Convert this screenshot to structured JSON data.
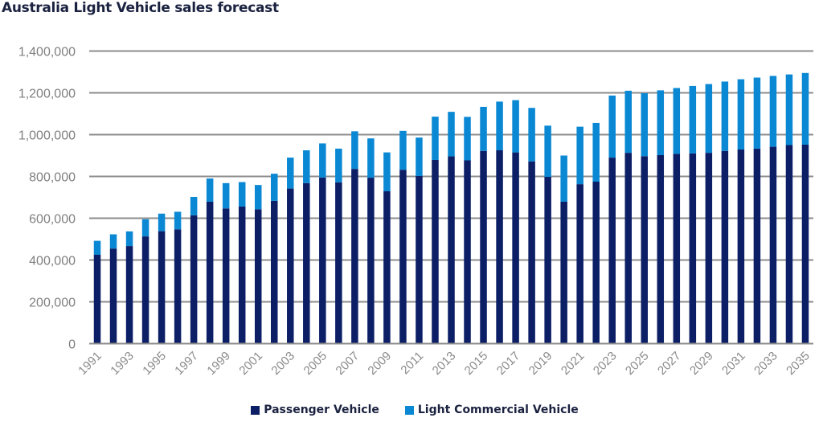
{
  "chart_data": {
    "type": "bar",
    "stacked": true,
    "title": "Australia Light Vehicle sales forecast",
    "xlabel": "",
    "ylabel": "",
    "ylim": [
      0,
      1400000
    ],
    "yticks": [
      0,
      200000,
      400000,
      600000,
      800000,
      1000000,
      1200000,
      1400000
    ],
    "ytick_labels": [
      "0",
      "200,000",
      "400,000",
      "600,000",
      "800,000",
      "1,000,000",
      "1,200,000",
      "1,400,000"
    ],
    "grid": "horizontal",
    "legend_position": "bottom",
    "categories": [
      "1991",
      "1992",
      "1993",
      "1994",
      "1995",
      "1996",
      "1997",
      "1998",
      "1999",
      "2000",
      "2001",
      "2002",
      "2003",
      "2004",
      "2005",
      "2006",
      "2007",
      "2008",
      "2009",
      "2010",
      "2011",
      "2012",
      "2013",
      "2014",
      "2015",
      "2016",
      "2017",
      "2018",
      "2019",
      "2020",
      "2021",
      "2022",
      "2023",
      "2024",
      "2025",
      "2026",
      "2027",
      "2028",
      "2029",
      "2030",
      "2031",
      "2032",
      "2033",
      "2034",
      "2035"
    ],
    "xtick_labels_shown": [
      "1991",
      "1993",
      "1995",
      "1997",
      "1999",
      "2001",
      "2003",
      "2005",
      "2007",
      "2009",
      "2011",
      "2013",
      "2015",
      "2017",
      "2019",
      "2021",
      "2023",
      "2025",
      "2027",
      "2029",
      "2031",
      "2033",
      "2035"
    ],
    "series": [
      {
        "name": "Passenger Vehicle",
        "color": "#0c1f66",
        "values": [
          425000,
          455000,
          467000,
          513000,
          538000,
          547000,
          614000,
          679000,
          647000,
          656000,
          643000,
          683000,
          742000,
          768000,
          795000,
          772000,
          836000,
          794000,
          729000,
          832000,
          802000,
          879000,
          896000,
          877000,
          922000,
          925000,
          915000,
          872000,
          798000,
          679000,
          763000,
          775000,
          890000,
          913000,
          897000,
          902000,
          908000,
          910000,
          913000,
          922000,
          929000,
          933000,
          942000,
          950000,
          952000
        ]
      },
      {
        "name": "Light Commercial Vehicle",
        "color": "#0a88d4",
        "values": [
          67000,
          68000,
          70000,
          82000,
          84000,
          84000,
          88000,
          111000,
          121000,
          117000,
          116000,
          130000,
          148000,
          157000,
          163000,
          161000,
          180000,
          188000,
          186000,
          186000,
          184000,
          207000,
          213000,
          208000,
          211000,
          233000,
          250000,
          256000,
          245000,
          221000,
          275000,
          281000,
          297000,
          297000,
          301000,
          310000,
          315000,
          323000,
          329000,
          332000,
          336000,
          340000,
          339000,
          338000,
          343000
        ]
      }
    ]
  },
  "legend": {
    "items": [
      {
        "label": "Passenger Vehicle",
        "color": "#0c1f66"
      },
      {
        "label": "Light Commercial Vehicle",
        "color": "#0a88d4"
      }
    ]
  }
}
